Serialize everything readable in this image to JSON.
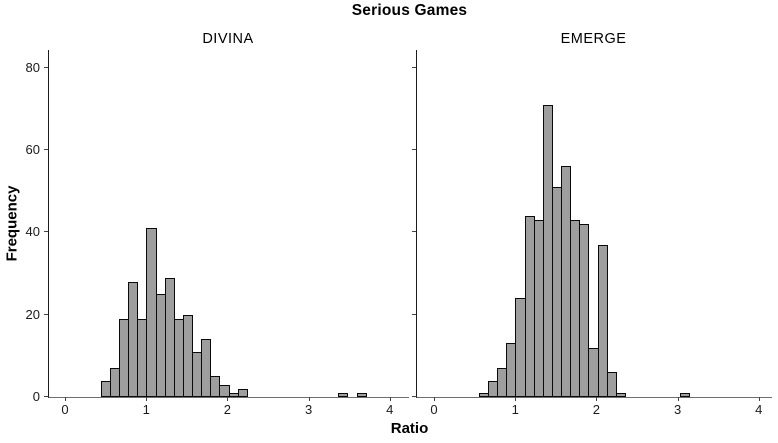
{
  "figure": {
    "title": "Serious Games",
    "xlabel": "Ratio",
    "ylabel": "Frequency"
  },
  "chart_data": {
    "type": "bar",
    "subtype": "histogram-small-multiples",
    "title": "Serious Games",
    "xlabel": "Ratio",
    "ylabel": "Frequency",
    "legend": "none",
    "grid": "off",
    "xticks": [
      0,
      1,
      2,
      3,
      4
    ],
    "yticks": [
      0,
      20,
      40,
      60,
      80
    ],
    "xlim": [
      -0.2,
      4.24
    ],
    "ylim": [
      0,
      84
    ],
    "bin_width": 0.1125,
    "bar_fill": "#9E9E9E",
    "bar_border": "#0A0A0A",
    "panels": [
      {
        "label": "DIVINA",
        "bin_start": 0.44,
        "counts": [
          4,
          7,
          19,
          28,
          19,
          41,
          25,
          29,
          19,
          20,
          11,
          14,
          5,
          3,
          1,
          2,
          0,
          0,
          0,
          0,
          0,
          0,
          0,
          0,
          0,
          0,
          1,
          0,
          1
        ]
      },
      {
        "label": "EMERGE",
        "bin_start": 0.5525,
        "counts": [
          1,
          4,
          7,
          13,
          24,
          44,
          43,
          71,
          51,
          56,
          43,
          42,
          12,
          37,
          6,
          1,
          0,
          0,
          0,
          0,
          0,
          0,
          1
        ]
      }
    ]
  }
}
